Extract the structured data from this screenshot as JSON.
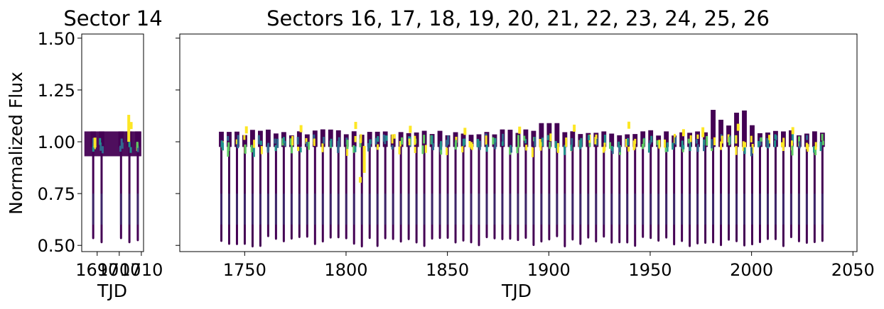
{
  "chart_data": [
    {
      "type": "scatter",
      "title": "Sector 14",
      "xlabel": "TJD",
      "ylabel": "Normalized Flux",
      "xlim": [
        1683,
        1711
      ],
      "ylim": [
        0.47,
        1.52
      ],
      "xticks": [
        1690,
        1700,
        1710
      ],
      "xtick_labels": [
        "1690",
        "1700",
        "1710"
      ],
      "yticks": [
        0.5,
        0.75,
        1.0,
        1.25,
        1.5
      ],
      "ytick_labels": [
        "0.50",
        "0.75",
        "1.00",
        "1.25",
        "1.50"
      ],
      "grid": false,
      "colormap": "viridis",
      "dips": [
        {
          "x": 1688.2,
          "depth": 0.53
        },
        {
          "x": 1692.0,
          "depth": 0.51
        },
        {
          "x": 1700.8,
          "depth": 0.53
        },
        {
          "x": 1704.6,
          "depth": 0.51
        },
        {
          "x": 1708.4,
          "depth": 0.52
        }
      ]
    },
    {
      "type": "scatter",
      "title": "Sectors 16, 17, 18, 19, 20, 21, 22, 23, 24, 25, 26",
      "xlabel": "TJD",
      "ylabel": "",
      "xlim": [
        1718,
        2052
      ],
      "ylim": [
        0.47,
        1.52
      ],
      "xticks": [
        1750,
        1800,
        1850,
        1900,
        1950,
        2000,
        2050
      ],
      "xtick_labels": [
        "1750",
        "1800",
        "1850",
        "1900",
        "1950",
        "2000",
        "2050"
      ],
      "yticks": [
        0.5,
        0.75,
        1.0,
        1.25,
        1.5
      ],
      "grid": false,
      "colormap": "viridis",
      "x_range_data": [
        1738.5,
        2035.0
      ],
      "eclipse_spacing_days": 3.85,
      "min_depth": 0.49,
      "max_high_flux": 1.17
    }
  ],
  "colors": {
    "series_main": "#440154",
    "series_mid": "#31688e",
    "series_teal": "#21918c",
    "series_green": "#5ec962",
    "series_yellow": "#fde725"
  }
}
